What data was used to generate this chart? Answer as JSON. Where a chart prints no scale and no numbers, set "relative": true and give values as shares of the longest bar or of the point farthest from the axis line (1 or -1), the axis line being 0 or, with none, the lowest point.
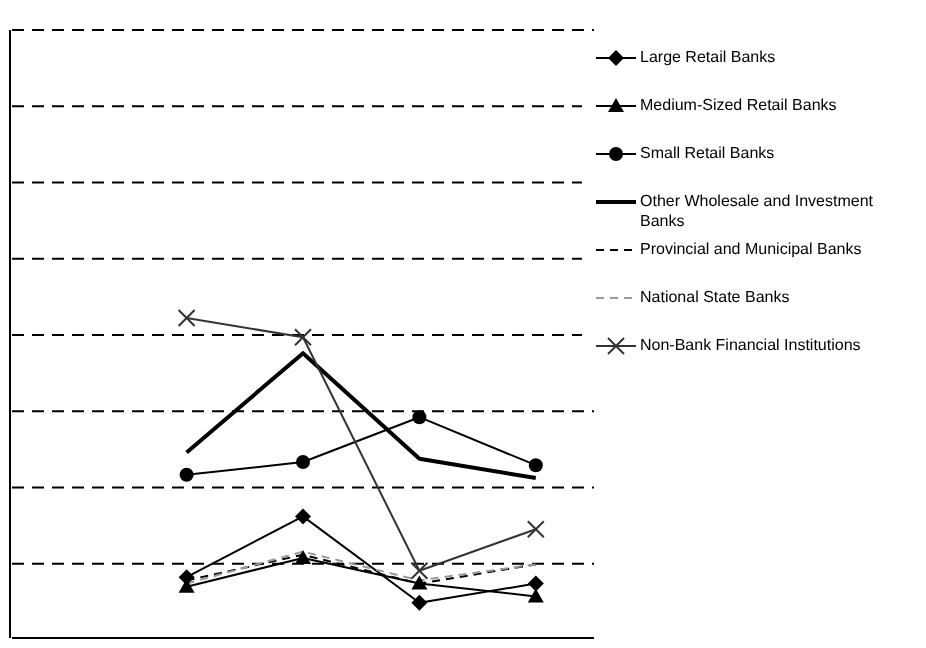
{
  "chart_data": {
    "type": "line",
    "relative": true,
    "categories": [
      null,
      null,
      null,
      null,
      null
    ],
    "grid": "y",
    "legend": "top right",
    "series": [
      {
        "name": "Large Retail Banks",
        "color": "#000000",
        "marker": "diamond",
        "line_style": "solid",
        "values": [
          null,
          0.19,
          0.38,
          0.11,
          0.17
        ]
      },
      {
        "name": "Medium-Sized Retail Banks",
        "color": "#000000",
        "marker": "triangle",
        "line_style": "solid",
        "values": [
          null,
          0.16,
          0.25,
          0.17,
          0.13
        ]
      },
      {
        "name": "Small Retail Banks",
        "color": "#000000",
        "marker": "circle",
        "line_style": "solid",
        "values": [
          null,
          0.51,
          0.55,
          0.69,
          0.54
        ]
      },
      {
        "name": "Other Wholesale and Investment Banks",
        "color": "#000000",
        "marker": "none",
        "line_style": "solid",
        "values": [
          null,
          0.58,
          0.89,
          0.56,
          0.5
        ]
      },
      {
        "name": "Provincial and Municipal Banks",
        "color": "#000000",
        "marker": "none",
        "line_style": "dashed",
        "values": [
          null,
          0.18,
          0.26,
          0.17,
          0.23
        ]
      },
      {
        "name": "National State Banks",
        "color": "#999999",
        "marker": "none",
        "line_style": "dashed",
        "values": [
          null,
          0.17,
          0.27,
          0.18,
          0.23
        ]
      },
      {
        "name": "Non-Bank Financial Institutions",
        "color": "#333333",
        "marker": "cross",
        "line_style": "solid",
        "values": [
          null,
          1,
          0.94,
          0.21,
          0.34
        ]
      }
    ]
  }
}
